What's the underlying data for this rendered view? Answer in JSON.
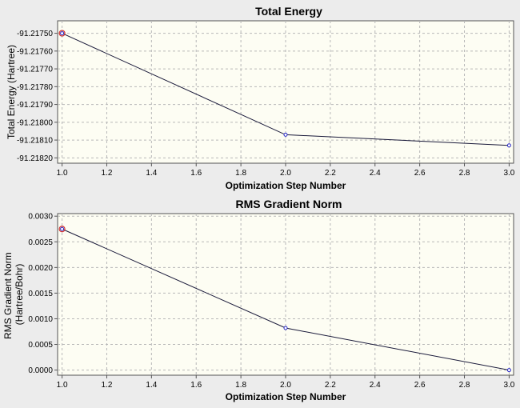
{
  "colors": {
    "window_bg": "#ececec",
    "plot_bg": "#fdfdf3",
    "line": "#1a1a3a",
    "marker": "#2828c8",
    "selected_marker": "#d03030",
    "grid": "#b8b8b8"
  },
  "chart_data": [
    {
      "type": "line",
      "title": "Total Energy",
      "xlabel": "Optimization Step Number",
      "ylabel": "Total Energy (Hartree)",
      "ylabel_lines": [
        "Total Energy (Hartree)"
      ],
      "x": [
        1,
        2,
        3
      ],
      "values": [
        -91.2175,
        -91.21807,
        -91.21813
      ],
      "xlim": [
        0.98,
        3.02
      ],
      "ylim": [
        -91.21823,
        -91.21743
      ],
      "xticks": [
        1.0,
        1.2,
        1.4,
        1.6,
        1.8,
        2.0,
        2.2,
        2.4,
        2.6,
        2.8,
        3.0
      ],
      "xtick_labels": [
        "1.0",
        "1.2",
        "1.4",
        "1.6",
        "1.8",
        "2.0",
        "2.2",
        "2.4",
        "2.6",
        "2.8",
        "3.0"
      ],
      "yticks": [
        -91.2175,
        -91.2176,
        -91.2177,
        -91.2178,
        -91.2179,
        -91.218,
        -91.2181,
        -91.2182
      ],
      "ytick_labels": [
        "-91.21750",
        "-91.21760",
        "-91.21770",
        "-91.21780",
        "-91.21790",
        "-91.21800",
        "-91.21810",
        "-91.21820"
      ],
      "grid": true,
      "legend": "none",
      "selected_point_index": 0
    },
    {
      "type": "line",
      "title": "RMS Gradient Norm",
      "xlabel": "Optimization Step Number",
      "ylabel": "RMS Gradient Norm (Hartree/Bohr)",
      "ylabel_lines": [
        "RMS Gradient Norm",
        "(Hartree/Bohr)"
      ],
      "x": [
        1,
        2,
        3
      ],
      "values": [
        0.00275,
        0.00082,
        0.0
      ],
      "xlim": [
        0.98,
        3.02
      ],
      "ylim": [
        -0.0001,
        0.00305
      ],
      "xticks": [
        1.0,
        1.2,
        1.4,
        1.6,
        1.8,
        2.0,
        2.2,
        2.4,
        2.6,
        2.8,
        3.0
      ],
      "xtick_labels": [
        "1.0",
        "1.2",
        "1.4",
        "1.6",
        "1.8",
        "2.0",
        "2.2",
        "2.4",
        "2.6",
        "2.8",
        "3.0"
      ],
      "yticks": [
        0.0,
        0.0005,
        0.001,
        0.0015,
        0.002,
        0.0025,
        0.003
      ],
      "ytick_labels": [
        "0.0000",
        "0.0005",
        "0.0010",
        "0.0015",
        "0.0020",
        "0.0025",
        "0.0030"
      ],
      "grid": true,
      "legend": "none",
      "selected_point_index": 0
    }
  ]
}
